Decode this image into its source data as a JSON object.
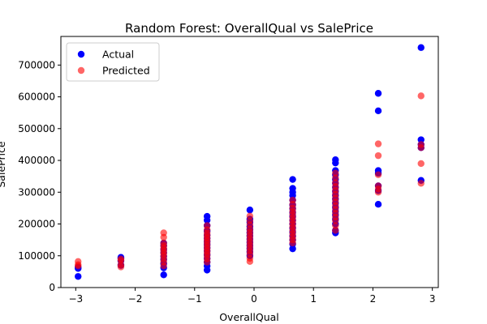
{
  "chart_data": {
    "type": "scatter",
    "title": "Random Forest: OverallQual vs SalePrice",
    "xlabel": "OverallQual",
    "ylabel": "SalePrice",
    "xlim": [
      -3.25,
      3.1
    ],
    "ylim": [
      0,
      790000
    ],
    "xticks": [
      -3,
      -2,
      -1,
      0,
      1,
      2,
      3
    ],
    "xtick_labels": [
      "−3",
      "−2",
      "−1",
      "0",
      "1",
      "2",
      "3"
    ],
    "yticks": [
      0,
      100000,
      200000,
      300000,
      400000,
      500000,
      600000,
      700000
    ],
    "ytick_labels": [
      "0",
      "100000",
      "200000",
      "300000",
      "400000",
      "500000",
      "600000",
      "700000"
    ],
    "grid": false,
    "legend_position": "top-left",
    "series": [
      {
        "name": "Actual",
        "color": "#0000ff",
        "opacity": 1,
        "points": [
          [
            -2.96,
            35000
          ],
          [
            -2.96,
            60000
          ],
          [
            -2.96,
            64000
          ],
          [
            -2.24,
            70000
          ],
          [
            -2.24,
            84000
          ],
          [
            -2.24,
            92000
          ],
          [
            -2.24,
            95000
          ],
          [
            -1.52,
            40000
          ],
          [
            -1.52,
            62000
          ],
          [
            -1.52,
            75000
          ],
          [
            -1.52,
            88000
          ],
          [
            -1.52,
            98000
          ],
          [
            -1.52,
            110000
          ],
          [
            -1.52,
            120000
          ],
          [
            -1.52,
            132000
          ],
          [
            -1.52,
            140000
          ],
          [
            -0.79,
            55000
          ],
          [
            -0.79,
            68000
          ],
          [
            -0.79,
            80000
          ],
          [
            -0.79,
            92000
          ],
          [
            -0.79,
            103000
          ],
          [
            -0.79,
            115000
          ],
          [
            -0.79,
            125000
          ],
          [
            -0.79,
            135000
          ],
          [
            -0.79,
            145000
          ],
          [
            -0.79,
            155000
          ],
          [
            -0.79,
            165000
          ],
          [
            -0.79,
            178000
          ],
          [
            -0.79,
            195000
          ],
          [
            -0.79,
            212000
          ],
          [
            -0.79,
            224000
          ],
          [
            -0.07,
            100000
          ],
          [
            -0.07,
            112000
          ],
          [
            -0.07,
            122000
          ],
          [
            -0.07,
            132000
          ],
          [
            -0.07,
            142000
          ],
          [
            -0.07,
            152000
          ],
          [
            -0.07,
            162000
          ],
          [
            -0.07,
            172000
          ],
          [
            -0.07,
            182000
          ],
          [
            -0.07,
            192000
          ],
          [
            -0.07,
            205000
          ],
          [
            -0.07,
            215000
          ],
          [
            -0.07,
            244000
          ],
          [
            0.65,
            122000
          ],
          [
            0.65,
            137000
          ],
          [
            0.65,
            150000
          ],
          [
            0.65,
            162000
          ],
          [
            0.65,
            175000
          ],
          [
            0.65,
            187000
          ],
          [
            0.65,
            200000
          ],
          [
            0.65,
            212000
          ],
          [
            0.65,
            224000
          ],
          [
            0.65,
            236000
          ],
          [
            0.65,
            248000
          ],
          [
            0.65,
            260000
          ],
          [
            0.65,
            275000
          ],
          [
            0.65,
            290000
          ],
          [
            0.65,
            300000
          ],
          [
            0.65,
            312000
          ],
          [
            0.65,
            340000
          ],
          [
            1.37,
            172000
          ],
          [
            1.37,
            180000
          ],
          [
            1.37,
            200000
          ],
          [
            1.37,
            215000
          ],
          [
            1.37,
            228000
          ],
          [
            1.37,
            240000
          ],
          [
            1.37,
            252000
          ],
          [
            1.37,
            265000
          ],
          [
            1.37,
            278000
          ],
          [
            1.37,
            290000
          ],
          [
            1.37,
            302000
          ],
          [
            1.37,
            315000
          ],
          [
            1.37,
            328000
          ],
          [
            1.37,
            340000
          ],
          [
            1.37,
            355000
          ],
          [
            1.37,
            368000
          ],
          [
            1.37,
            392000
          ],
          [
            1.37,
            402000
          ],
          [
            2.09,
            262000
          ],
          [
            2.09,
            305000
          ],
          [
            2.09,
            320000
          ],
          [
            2.09,
            360000
          ],
          [
            2.09,
            368000
          ],
          [
            2.09,
            556000
          ],
          [
            2.09,
            611000
          ],
          [
            2.81,
            337000
          ],
          [
            2.81,
            440000
          ],
          [
            2.81,
            450000
          ],
          [
            2.81,
            465000
          ],
          [
            2.81,
            755000
          ]
        ]
      },
      {
        "name": "Predicted",
        "color": "#ff0000",
        "opacity": 0.6,
        "points": [
          [
            -2.96,
            68000
          ],
          [
            -2.96,
            72000
          ],
          [
            -2.96,
            82000
          ],
          [
            -2.24,
            65000
          ],
          [
            -2.24,
            72000
          ],
          [
            -2.24,
            85000
          ],
          [
            -2.24,
            90000
          ],
          [
            -1.52,
            68000
          ],
          [
            -1.52,
            80000
          ],
          [
            -1.52,
            90000
          ],
          [
            -1.52,
            100000
          ],
          [
            -1.52,
            108000
          ],
          [
            -1.52,
            116000
          ],
          [
            -1.52,
            124000
          ],
          [
            -1.52,
            132000
          ],
          [
            -1.52,
            140000
          ],
          [
            -1.52,
            158000
          ],
          [
            -1.52,
            172000
          ],
          [
            -0.79,
            80000
          ],
          [
            -0.79,
            90000
          ],
          [
            -0.79,
            100000
          ],
          [
            -0.79,
            108000
          ],
          [
            -0.79,
            116000
          ],
          [
            -0.79,
            124000
          ],
          [
            -0.79,
            132000
          ],
          [
            -0.79,
            140000
          ],
          [
            -0.79,
            148000
          ],
          [
            -0.79,
            156000
          ],
          [
            -0.79,
            164000
          ],
          [
            -0.79,
            172000
          ],
          [
            -0.79,
            182000
          ],
          [
            -0.79,
            195000
          ],
          [
            -0.07,
            82000
          ],
          [
            -0.07,
            92000
          ],
          [
            -0.07,
            105000
          ],
          [
            -0.07,
            115000
          ],
          [
            -0.07,
            125000
          ],
          [
            -0.07,
            135000
          ],
          [
            -0.07,
            145000
          ],
          [
            -0.07,
            155000
          ],
          [
            -0.07,
            165000
          ],
          [
            -0.07,
            175000
          ],
          [
            -0.07,
            185000
          ],
          [
            -0.07,
            198000
          ],
          [
            -0.07,
            210000
          ],
          [
            -0.07,
            225000
          ],
          [
            0.65,
            140000
          ],
          [
            0.65,
            150000
          ],
          [
            0.65,
            160000
          ],
          [
            0.65,
            170000
          ],
          [
            0.65,
            180000
          ],
          [
            0.65,
            190000
          ],
          [
            0.65,
            200000
          ],
          [
            0.65,
            210000
          ],
          [
            0.65,
            220000
          ],
          [
            0.65,
            230000
          ],
          [
            0.65,
            240000
          ],
          [
            0.65,
            250000
          ],
          [
            0.65,
            262000
          ],
          [
            0.65,
            275000
          ],
          [
            1.37,
            180000
          ],
          [
            1.37,
            195000
          ],
          [
            1.37,
            210000
          ],
          [
            1.37,
            222000
          ],
          [
            1.37,
            234000
          ],
          [
            1.37,
            246000
          ],
          [
            1.37,
            258000
          ],
          [
            1.37,
            270000
          ],
          [
            1.37,
            282000
          ],
          [
            1.37,
            294000
          ],
          [
            1.37,
            306000
          ],
          [
            1.37,
            318000
          ],
          [
            1.37,
            330000
          ],
          [
            1.37,
            345000
          ],
          [
            1.37,
            360000
          ],
          [
            2.09,
            300000
          ],
          [
            2.09,
            310000
          ],
          [
            2.09,
            320000
          ],
          [
            2.09,
            355000
          ],
          [
            2.09,
            415000
          ],
          [
            2.09,
            452000
          ],
          [
            2.81,
            328000
          ],
          [
            2.81,
            390000
          ],
          [
            2.81,
            440000
          ],
          [
            2.81,
            450000
          ],
          [
            2.81,
            603000
          ]
        ]
      }
    ]
  }
}
